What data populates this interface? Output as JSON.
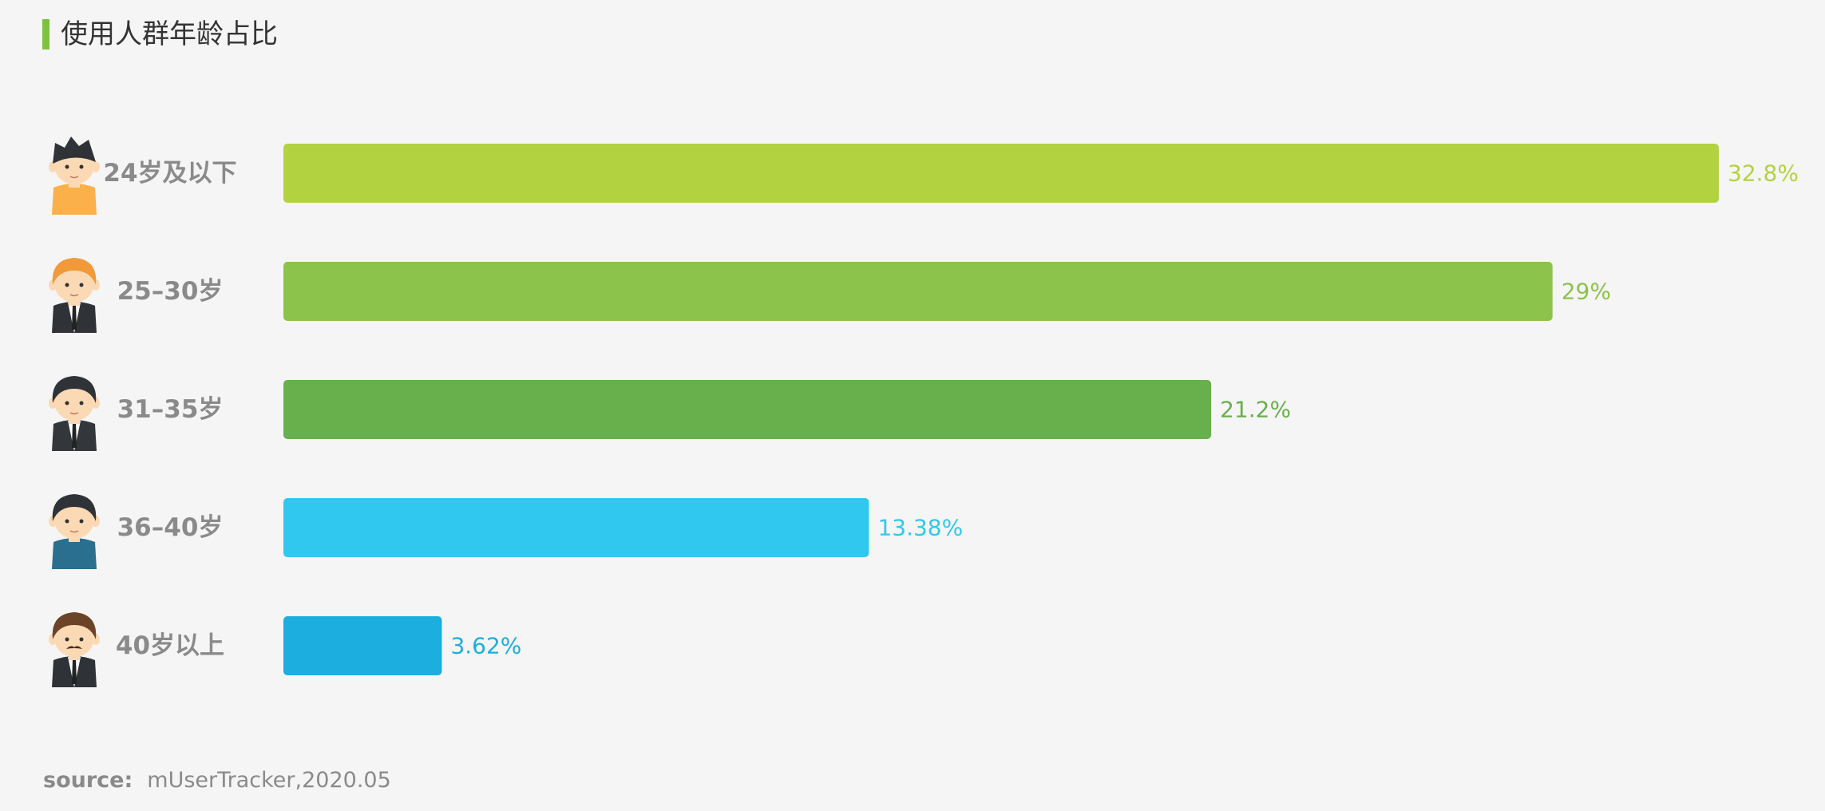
{
  "title": "使用人群年龄占比",
  "accent_color": "#7cc242",
  "source": {
    "label": "source:",
    "value": "mUserTracker,2020.05"
  },
  "chart_data": {
    "type": "bar",
    "orientation": "horizontal",
    "title": "使用人群年龄占比",
    "categories": [
      "24岁及以下",
      "25–30岁",
      "31–35岁",
      "36–40岁",
      "40岁以上"
    ],
    "values": [
      32.8,
      29,
      21.2,
      13.38,
      3.62
    ],
    "value_labels": [
      "32.8%",
      "29%",
      "21.2%",
      "13.38%",
      "3.62%"
    ],
    "colors": [
      "#b3d240",
      "#8cc34a",
      "#67b04b",
      "#30c8ef",
      "#1caede"
    ],
    "category_icons": [
      "young-man-icon",
      "ginger-man-in-suit-icon",
      "man-in-suit-icon",
      "man-in-tshirt-icon",
      "mustached-man-icon"
    ],
    "xlim": [
      0,
      32.8
    ],
    "grid": false,
    "legend": "none",
    "xlabel": "",
    "ylabel": ""
  }
}
